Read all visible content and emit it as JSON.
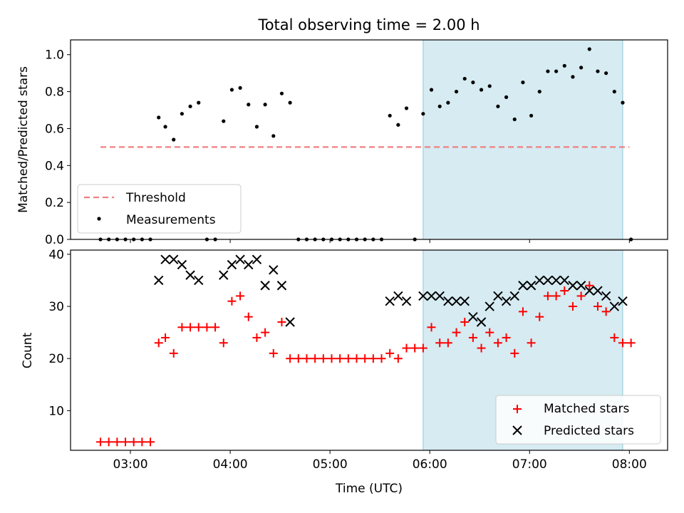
{
  "chart_data": [
    {
      "panel": "top",
      "type": "scatter",
      "title": "Total observing time = 2.00 h",
      "ylabel": "Matched/Predicted stars",
      "ylim": [
        0,
        1.08
      ],
      "yticks": [
        "0.0",
        "0.2",
        "0.4",
        "0.6",
        "0.8",
        "1.0"
      ],
      "ytick_values": [
        0,
        0.2,
        0.4,
        0.6,
        0.8,
        1.0
      ],
      "xlim": [
        "02:24",
        "08:23"
      ],
      "legend_position": "lower-left",
      "highlight_span": [
        "05:56",
        "07:56"
      ],
      "highlight_color": "#add8e6",
      "series": [
        {
          "name": "Threshold",
          "style": "dashed-line",
          "color": "#f08080",
          "x": [
            "02:42",
            "08:00"
          ],
          "y": [
            0.5,
            0.5
          ]
        },
        {
          "name": "Measurements",
          "style": "dot",
          "color": "#000000",
          "x": [
            "02:42",
            "02:47",
            "02:52",
            "02:57",
            "03:02",
            "03:07",
            "03:12",
            "03:17",
            "03:21",
            "03:26",
            "03:31",
            "03:36",
            "03:41",
            "03:46",
            "03:51",
            "03:56",
            "04:01",
            "04:06",
            "04:11",
            "04:16",
            "04:21",
            "04:26",
            "04:31",
            "04:36",
            "04:41",
            "04:46",
            "04:51",
            "04:56",
            "05:01",
            "05:06",
            "05:11",
            "05:16",
            "05:21",
            "05:26",
            "05:31",
            "05:36",
            "05:41",
            "05:46",
            "05:51",
            "05:56",
            "06:01",
            "06:06",
            "06:11",
            "06:16",
            "06:21",
            "06:26",
            "06:31",
            "06:36",
            "06:41",
            "06:46",
            "06:51",
            "06:56",
            "07:01",
            "07:06",
            "07:11",
            "07:16",
            "07:21",
            "07:26",
            "07:31",
            "07:36",
            "07:41",
            "07:46",
            "07:51",
            "07:56",
            "08:01"
          ],
          "y": [
            0,
            0,
            0,
            0,
            0,
            0,
            0,
            0.66,
            0.61,
            0.54,
            0.68,
            0.72,
            0.74,
            0,
            0,
            0.64,
            0.81,
            0.82,
            0.73,
            0.61,
            0.73,
            0.56,
            0.79,
            0.74,
            0,
            0,
            0,
            0,
            0,
            0,
            0,
            0,
            0,
            0,
            0,
            0.67,
            0.62,
            0.71,
            0,
            0.68,
            0.81,
            0.72,
            0.74,
            0.8,
            0.87,
            0.85,
            0.81,
            0.83,
            0.72,
            0.77,
            0.65,
            0.85,
            0.67,
            0.8,
            0.91,
            0.91,
            0.94,
            0.88,
            0.93,
            1.03,
            0.91,
            0.9,
            0.8,
            0.74,
            0
          ]
        }
      ]
    },
    {
      "panel": "bottom",
      "type": "scatter",
      "xlabel": "Time (UTC)",
      "ylabel": "Count",
      "ylim": [
        2.4,
        40.8
      ],
      "yticks": [
        "10",
        "20",
        "30",
        "40"
      ],
      "ytick_values": [
        10,
        20,
        30,
        40
      ],
      "xlim": [
        "02:24",
        "08:23"
      ],
      "xticks": [
        "03:00",
        "04:00",
        "05:00",
        "06:00",
        "07:00",
        "08:00"
      ],
      "legend_position": "lower-right",
      "highlight_span": [
        "05:56",
        "07:56"
      ],
      "highlight_color": "#add8e6",
      "series": [
        {
          "name": "Matched stars",
          "marker": "plus",
          "color": "#ff0000",
          "x": [
            "02:42",
            "02:47",
            "02:52",
            "02:57",
            "03:02",
            "03:07",
            "03:12",
            "03:17",
            "03:21",
            "03:26",
            "03:31",
            "03:36",
            "03:41",
            "03:46",
            "03:51",
            "03:56",
            "04:01",
            "04:06",
            "04:11",
            "04:16",
            "04:21",
            "04:26",
            "04:31",
            "04:36",
            "04:41",
            "04:46",
            "04:51",
            "04:56",
            "05:01",
            "05:06",
            "05:11",
            "05:16",
            "05:21",
            "05:26",
            "05:31",
            "05:36",
            "05:41",
            "05:46",
            "05:51",
            "05:56",
            "06:01",
            "06:06",
            "06:11",
            "06:16",
            "06:21",
            "06:26",
            "06:31",
            "06:36",
            "06:41",
            "06:46",
            "06:51",
            "06:56",
            "07:01",
            "07:06",
            "07:11",
            "07:16",
            "07:21",
            "07:26",
            "07:31",
            "07:36",
            "07:41",
            "07:46",
            "07:51",
            "07:56",
            "08:01"
          ],
          "y": [
            4,
            4,
            4,
            4,
            4,
            4,
            4,
            23,
            24,
            21,
            26,
            26,
            26,
            26,
            26,
            23,
            31,
            32,
            28,
            24,
            25,
            21,
            27,
            20,
            20,
            20,
            20,
            20,
            20,
            20,
            20,
            20,
            20,
            20,
            20,
            21,
            20,
            22,
            22,
            22,
            26,
            23,
            23,
            25,
            27,
            24,
            22,
            25,
            23,
            24,
            21,
            29,
            23,
            28,
            32,
            32,
            33,
            30,
            32,
            34,
            30,
            29,
            24,
            23,
            23
          ]
        },
        {
          "name": "Predicted stars",
          "marker": "x",
          "color": "#000000",
          "x": [
            "03:17",
            "03:21",
            "03:26",
            "03:31",
            "03:36",
            "03:41",
            "03:56",
            "04:01",
            "04:06",
            "04:11",
            "04:16",
            "04:21",
            "04:26",
            "04:31",
            "04:36",
            "05:36",
            "05:41",
            "05:46",
            "05:56",
            "06:01",
            "06:06",
            "06:11",
            "06:16",
            "06:21",
            "06:26",
            "06:31",
            "06:36",
            "06:41",
            "06:46",
            "06:51",
            "06:56",
            "07:01",
            "07:06",
            "07:11",
            "07:16",
            "07:21",
            "07:26",
            "07:31",
            "07:36",
            "07:41",
            "07:46",
            "07:51",
            "07:56"
          ],
          "y": [
            35,
            39,
            39,
            38,
            36,
            35,
            36,
            38,
            39,
            38,
            39,
            34,
            37,
            34,
            27,
            31,
            32,
            31,
            32,
            32,
            32,
            31,
            31,
            31,
            28,
            27,
            30,
            32,
            31,
            32,
            34,
            34,
            35,
            35,
            35,
            35,
            34,
            34,
            33,
            33,
            32,
            30,
            31
          ]
        }
      ]
    }
  ]
}
